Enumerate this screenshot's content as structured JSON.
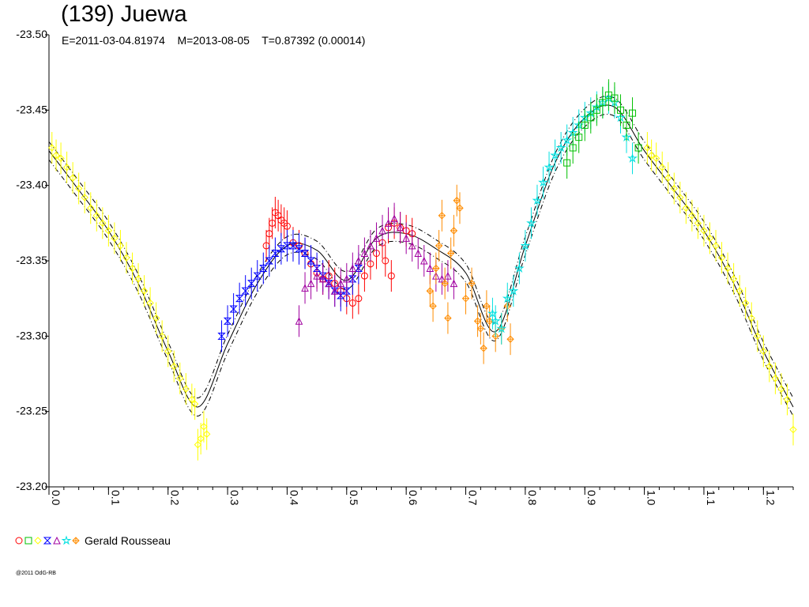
{
  "title": "(139) Juewa",
  "subtitle": "E=2011-03-04.81974    M=2013-08-05    T=0.87392 (0.00014)",
  "legend": {
    "observer": "Gerald Rousseau",
    "markers": [
      {
        "shape": "circle",
        "color": "#ff0000"
      },
      {
        "shape": "square",
        "color": "#00c000"
      },
      {
        "shape": "diamond",
        "color": "#ffff00"
      },
      {
        "shape": "hourglass",
        "color": "#0000ff"
      },
      {
        "shape": "triangle",
        "color": "#a000a0"
      },
      {
        "shape": "star",
        "color": "#00e0e0"
      },
      {
        "shape": "diamond-cross",
        "color": "#ff8c00"
      }
    ]
  },
  "credit": "@2011 OdG-RB",
  "chart_data": {
    "type": "scatter",
    "title": "(139) Juewa",
    "subtitle": "E=2011-03-04.81974    M=2013-08-05    T=0.87392 (0.00014)",
    "xlim": [
      0.0,
      1.25
    ],
    "ylim": [
      -23.5,
      -23.2
    ],
    "x_ticks": [
      "0.0",
      "0.1",
      "0.2",
      "0.3",
      "0.4",
      "0.5",
      "0.6",
      "0.7",
      "0.8",
      "0.9",
      "1.0",
      "1.1",
      "1.2"
    ],
    "y_ticks": [
      "-23.50",
      "-23.45",
      "-23.40",
      "-23.35",
      "-23.30",
      "-23.25",
      "-23.20"
    ],
    "grid": false,
    "legend_position": "bottom-left",
    "fit_curve": {
      "x": [
        0.0,
        0.05,
        0.1,
        0.15,
        0.2,
        0.25,
        0.3,
        0.35,
        0.4,
        0.45,
        0.5,
        0.55,
        0.6,
        0.65,
        0.7,
        0.75,
        0.8,
        0.85,
        0.9,
        0.95,
        1.0,
        1.05,
        1.1,
        1.15,
        1.2,
        1.25
      ],
      "y": [
        -23.423,
        -23.397,
        -23.37,
        -23.335,
        -23.29,
        -23.253,
        -23.295,
        -23.335,
        -23.36,
        -23.357,
        -23.337,
        -23.365,
        -23.368,
        -23.358,
        -23.342,
        -23.303,
        -23.36,
        -23.415,
        -23.445,
        -23.452,
        -23.423,
        -23.397,
        -23.37,
        -23.335,
        -23.29,
        -23.253
      ],
      "band_offset": 0.006
    },
    "series": [
      {
        "marker": "diamond",
        "color": "#ffff00",
        "points": [
          [
            0.005,
            -23.425
          ],
          [
            0.012,
            -23.42
          ],
          [
            0.02,
            -23.418
          ],
          [
            0.03,
            -23.412
          ],
          [
            0.04,
            -23.405
          ],
          [
            0.05,
            -23.398
          ],
          [
            0.06,
            -23.392
          ],
          [
            0.07,
            -23.385
          ],
          [
            0.08,
            -23.38
          ],
          [
            0.09,
            -23.375
          ],
          [
            0.1,
            -23.37
          ],
          [
            0.11,
            -23.365
          ],
          [
            0.12,
            -23.36
          ],
          [
            0.13,
            -23.352
          ],
          [
            0.14,
            -23.345
          ],
          [
            0.15,
            -23.338
          ],
          [
            0.16,
            -23.33
          ],
          [
            0.17,
            -23.322
          ],
          [
            0.18,
            -23.312
          ],
          [
            0.19,
            -23.3
          ],
          [
            0.2,
            -23.29
          ],
          [
            0.21,
            -23.28
          ],
          [
            0.22,
            -23.272
          ],
          [
            0.23,
            -23.265
          ],
          [
            0.24,
            -23.258
          ],
          [
            0.245,
            -23.255
          ],
          [
            0.25,
            -23.228
          ],
          [
            0.255,
            -23.232
          ],
          [
            0.26,
            -23.24
          ],
          [
            0.265,
            -23.235
          ],
          [
            1.005,
            -23.425
          ],
          [
            1.012,
            -23.42
          ],
          [
            1.02,
            -23.418
          ],
          [
            1.03,
            -23.412
          ],
          [
            1.04,
            -23.405
          ],
          [
            1.05,
            -23.398
          ],
          [
            1.06,
            -23.392
          ],
          [
            1.07,
            -23.385
          ],
          [
            1.08,
            -23.38
          ],
          [
            1.09,
            -23.375
          ],
          [
            1.1,
            -23.37
          ],
          [
            1.11,
            -23.365
          ],
          [
            1.12,
            -23.36
          ],
          [
            1.13,
            -23.352
          ],
          [
            1.14,
            -23.345
          ],
          [
            1.15,
            -23.338
          ],
          [
            1.16,
            -23.33
          ],
          [
            1.17,
            -23.322
          ],
          [
            1.18,
            -23.312
          ],
          [
            1.19,
            -23.3
          ],
          [
            1.2,
            -23.29
          ],
          [
            1.21,
            -23.28
          ],
          [
            1.22,
            -23.272
          ],
          [
            1.23,
            -23.265
          ],
          [
            1.24,
            -23.258
          ],
          [
            1.25,
            -23.238
          ]
        ]
      },
      {
        "marker": "circle",
        "color": "#ff0000",
        "points": [
          [
            0.365,
            -23.36
          ],
          [
            0.37,
            -23.368
          ],
          [
            0.375,
            -23.375
          ],
          [
            0.38,
            -23.382
          ],
          [
            0.385,
            -23.38
          ],
          [
            0.39,
            -23.377
          ],
          [
            0.395,
            -23.375
          ],
          [
            0.4,
            -23.373
          ],
          [
            0.41,
            -23.362
          ],
          [
            0.42,
            -23.36
          ],
          [
            0.43,
            -23.355
          ],
          [
            0.44,
            -23.348
          ],
          [
            0.45,
            -23.342
          ],
          [
            0.46,
            -23.338
          ],
          [
            0.47,
            -23.34
          ],
          [
            0.48,
            -23.335
          ],
          [
            0.49,
            -23.33
          ],
          [
            0.5,
            -23.325
          ],
          [
            0.51,
            -23.322
          ],
          [
            0.52,
            -23.325
          ],
          [
            0.53,
            -23.34
          ],
          [
            0.54,
            -23.348
          ],
          [
            0.55,
            -23.355
          ],
          [
            0.56,
            -23.362
          ],
          [
            0.565,
            -23.35
          ],
          [
            0.57,
            -23.372
          ],
          [
            0.575,
            -23.34
          ],
          [
            0.58,
            -23.375
          ],
          [
            0.59,
            -23.372
          ],
          [
            0.6,
            -23.37
          ],
          [
            0.61,
            -23.368
          ]
        ]
      },
      {
        "marker": "hourglass",
        "color": "#0000ff",
        "points": [
          [
            0.29,
            -23.3
          ],
          [
            0.3,
            -23.31
          ],
          [
            0.31,
            -23.318
          ],
          [
            0.32,
            -23.325
          ],
          [
            0.33,
            -23.33
          ],
          [
            0.34,
            -23.335
          ],
          [
            0.35,
            -23.34
          ],
          [
            0.36,
            -23.345
          ],
          [
            0.37,
            -23.35
          ],
          [
            0.38,
            -23.355
          ],
          [
            0.39,
            -23.358
          ],
          [
            0.4,
            -23.36
          ],
          [
            0.41,
            -23.36
          ],
          [
            0.42,
            -23.358
          ],
          [
            0.43,
            -23.355
          ],
          [
            0.44,
            -23.35
          ],
          [
            0.45,
            -23.345
          ],
          [
            0.46,
            -23.34
          ],
          [
            0.47,
            -23.335
          ],
          [
            0.48,
            -23.33
          ],
          [
            0.49,
            -23.327
          ],
          [
            0.5,
            -23.33
          ],
          [
            0.51,
            -23.338
          ],
          [
            0.52,
            -23.345
          ]
        ]
      },
      {
        "marker": "triangle",
        "color": "#a000a0",
        "points": [
          [
            0.42,
            -23.31
          ],
          [
            0.43,
            -23.332
          ],
          [
            0.44,
            -23.335
          ],
          [
            0.45,
            -23.34
          ],
          [
            0.46,
            -23.338
          ],
          [
            0.47,
            -23.335
          ],
          [
            0.48,
            -23.33
          ],
          [
            0.49,
            -23.335
          ],
          [
            0.5,
            -23.338
          ],
          [
            0.51,
            -23.345
          ],
          [
            0.52,
            -23.35
          ],
          [
            0.53,
            -23.355
          ],
          [
            0.54,
            -23.36
          ],
          [
            0.55,
            -23.365
          ],
          [
            0.56,
            -23.37
          ],
          [
            0.57,
            -23.375
          ],
          [
            0.58,
            -23.378
          ],
          [
            0.59,
            -23.372
          ],
          [
            0.6,
            -23.365
          ],
          [
            0.61,
            -23.36
          ],
          [
            0.62,
            -23.355
          ],
          [
            0.63,
            -23.35
          ],
          [
            0.64,
            -23.345
          ],
          [
            0.65,
            -23.34
          ],
          [
            0.66,
            -23.338
          ],
          [
            0.67,
            -23.34
          ],
          [
            0.68,
            -23.335
          ]
        ]
      },
      {
        "marker": "diamond-cross",
        "color": "#ff8c00",
        "points": [
          [
            0.64,
            -23.33
          ],
          [
            0.645,
            -23.32
          ],
          [
            0.65,
            -23.345
          ],
          [
            0.655,
            -23.36
          ],
          [
            0.66,
            -23.38
          ],
          [
            0.665,
            -23.335
          ],
          [
            0.67,
            -23.312
          ],
          [
            0.675,
            -23.355
          ],
          [
            0.68,
            -23.37
          ],
          [
            0.685,
            -23.39
          ],
          [
            0.69,
            -23.385
          ],
          [
            0.7,
            -23.325
          ],
          [
            0.71,
            -23.335
          ],
          [
            0.72,
            -23.31
          ],
          [
            0.725,
            -23.305
          ],
          [
            0.73,
            -23.292
          ],
          [
            0.735,
            -23.32
          ],
          [
            0.74,
            -23.31
          ],
          [
            0.75,
            -23.3
          ],
          [
            0.76,
            -23.305
          ],
          [
            0.77,
            -23.32
          ],
          [
            0.775,
            -23.298
          ]
        ]
      },
      {
        "marker": "star",
        "color": "#00e0e0",
        "points": [
          [
            0.745,
            -23.315
          ],
          [
            0.75,
            -23.31
          ],
          [
            0.76,
            -23.305
          ],
          [
            0.77,
            -23.325
          ],
          [
            0.78,
            -23.33
          ],
          [
            0.79,
            -23.345
          ],
          [
            0.8,
            -23.36
          ],
          [
            0.81,
            -23.375
          ],
          [
            0.82,
            -23.39
          ],
          [
            0.83,
            -23.402
          ],
          [
            0.84,
            -23.412
          ],
          [
            0.85,
            -23.42
          ],
          [
            0.86,
            -23.425
          ],
          [
            0.87,
            -23.43
          ],
          [
            0.88,
            -23.435
          ],
          [
            0.89,
            -23.44
          ],
          [
            0.9,
            -23.445
          ],
          [
            0.91,
            -23.448
          ],
          [
            0.92,
            -23.452
          ],
          [
            0.93,
            -23.455
          ],
          [
            0.94,
            -23.458
          ],
          [
            0.95,
            -23.455
          ],
          [
            0.96,
            -23.445
          ],
          [
            0.97,
            -23.432
          ],
          [
            0.98,
            -23.418
          ]
        ]
      },
      {
        "marker": "square",
        "color": "#00c000",
        "points": [
          [
            0.87,
            -23.415
          ],
          [
            0.88,
            -23.425
          ],
          [
            0.89,
            -23.432
          ],
          [
            0.9,
            -23.44
          ],
          [
            0.91,
            -23.445
          ],
          [
            0.92,
            -23.45
          ],
          [
            0.93,
            -23.455
          ],
          [
            0.94,
            -23.46
          ],
          [
            0.95,
            -23.458
          ],
          [
            0.96,
            -23.45
          ],
          [
            0.97,
            -23.44
          ],
          [
            0.98,
            -23.448
          ],
          [
            0.99,
            -23.425
          ]
        ]
      }
    ]
  }
}
